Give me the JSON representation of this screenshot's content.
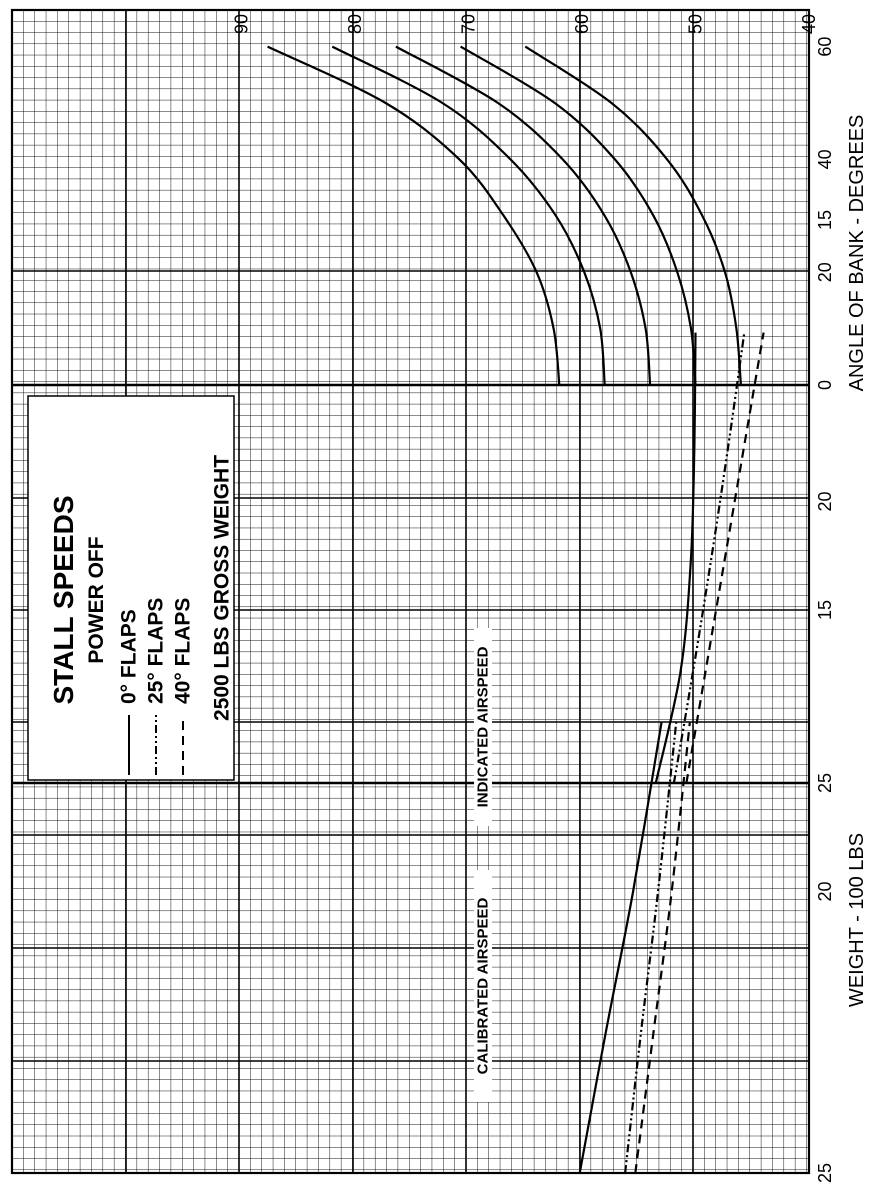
{
  "chart_data": {
    "type": "line",
    "title": "STALL SPEEDS",
    "subtitle": "POWER OFF",
    "condition_label": "2500 LBS GROSS WEIGHT",
    "y_axis": {
      "ticks": [
        "40",
        "50",
        "60",
        "70",
        "80",
        "90"
      ],
      "range": [
        40,
        97
      ]
    },
    "legend": [
      {
        "name": "0° FLAPS",
        "style": "solid"
      },
      {
        "name": "25° FLAPS",
        "style": "dash-dot-dot"
      },
      {
        "name": "40° FLAPS",
        "style": "dashed"
      }
    ],
    "panels": [
      {
        "id": "calibrated",
        "section_label": "CALIBRATED AIRSPEED",
        "xlabel": "WEIGHT - 100 LBS",
        "x_ticks": [
          "25",
          "20",
          "15"
        ],
        "x_range": [
          25,
          13.5
        ],
        "series": [
          {
            "name": "0° FLAPS",
            "style": "solid",
            "x": [
              25,
              22.5,
              20,
              17
            ],
            "y": [
              60.2,
              57.9,
              55.5,
              53.0
            ]
          },
          {
            "name": "25° FLAPS",
            "style": "dash-dot-dot",
            "x": [
              25,
              22.5,
              20,
              17
            ],
            "y": [
              56.2,
              54.8,
              53.3,
              51.7
            ]
          },
          {
            "name": "40° FLAPS",
            "style": "dashed",
            "x": [
              25,
              22.5,
              20,
              17
            ],
            "y": [
              55.3,
              53.7,
              52.1,
              50.5
            ]
          }
        ]
      },
      {
        "id": "indicated",
        "section_label": "INDICATED AIRSPEED",
        "xlabel": "",
        "x_ticks": [
          "25",
          "20",
          "15"
        ],
        "x_range": [
          25,
          13.5
        ],
        "series": [
          {
            "name": "0° FLAPS",
            "style": "solid",
            "x": [
              25,
              23,
              21,
              19,
              17
            ],
            "y": [
              53.5,
              51.3,
              50.4,
              50.1,
              50.0
            ]
          },
          {
            "name": "25° FLAPS",
            "style": "dash-dot-dot",
            "x": [
              25,
              23,
              21,
              19,
              17
            ],
            "y": [
              51.9,
              50.2,
              48.6,
              47.1,
              45.7
            ]
          },
          {
            "name": "40° FLAPS",
            "style": "dashed",
            "x": [
              25,
              23,
              21,
              19,
              17
            ],
            "y": [
              50.8,
              49.1,
              47.4,
              45.7,
              44.0
            ]
          }
        ]
      },
      {
        "id": "bank",
        "section_label": "",
        "xlabel": "ANGLE OF BANK - DEGREES",
        "x_ticks": [
          "0",
          "20",
          "40",
          "60"
        ],
        "x_range": [
          -10,
          60
        ],
        "series": [
          {
            "name": "0° FLAPS (CAS)",
            "style": "solid",
            "x": [
              0,
              10,
              20,
              30,
              40,
              50,
              60
            ],
            "y": [
              62.0,
              62.5,
              64.0,
              66.9,
              70.8,
              77.3,
              87.7
            ]
          },
          {
            "name": "25° FLAPS (CAS)",
            "style": "solid",
            "x": [
              0,
              10,
              20,
              30,
              40,
              50,
              60
            ],
            "y": [
              58.0,
              58.4,
              59.8,
              62.3,
              66.3,
              72.3,
              82.0
            ]
          },
          {
            "name": "40° FLAPS (CAS)",
            "style": "solid",
            "x": [
              0,
              10,
              20,
              30,
              40,
              50,
              60
            ],
            "y": [
              54.0,
              54.4,
              55.7,
              58.0,
              61.7,
              67.4,
              76.4
            ]
          },
          {
            "name": "0° FLAPS (IAS)",
            "style": "solid",
            "x": [
              0,
              10,
              20,
              30,
              40,
              50,
              60
            ],
            "y": [
              50.0,
              50.4,
              51.6,
              53.7,
              57.1,
              62.4,
              70.7
            ]
          },
          {
            "name": "40° FLAPS (IAS)",
            "style": "solid",
            "x": [
              0,
              10,
              20,
              30,
              40,
              50,
              60
            ],
            "y": [
              46.0,
              46.4,
              47.4,
              49.4,
              52.5,
              57.4,
              65.0
            ]
          }
        ]
      }
    ]
  }
}
